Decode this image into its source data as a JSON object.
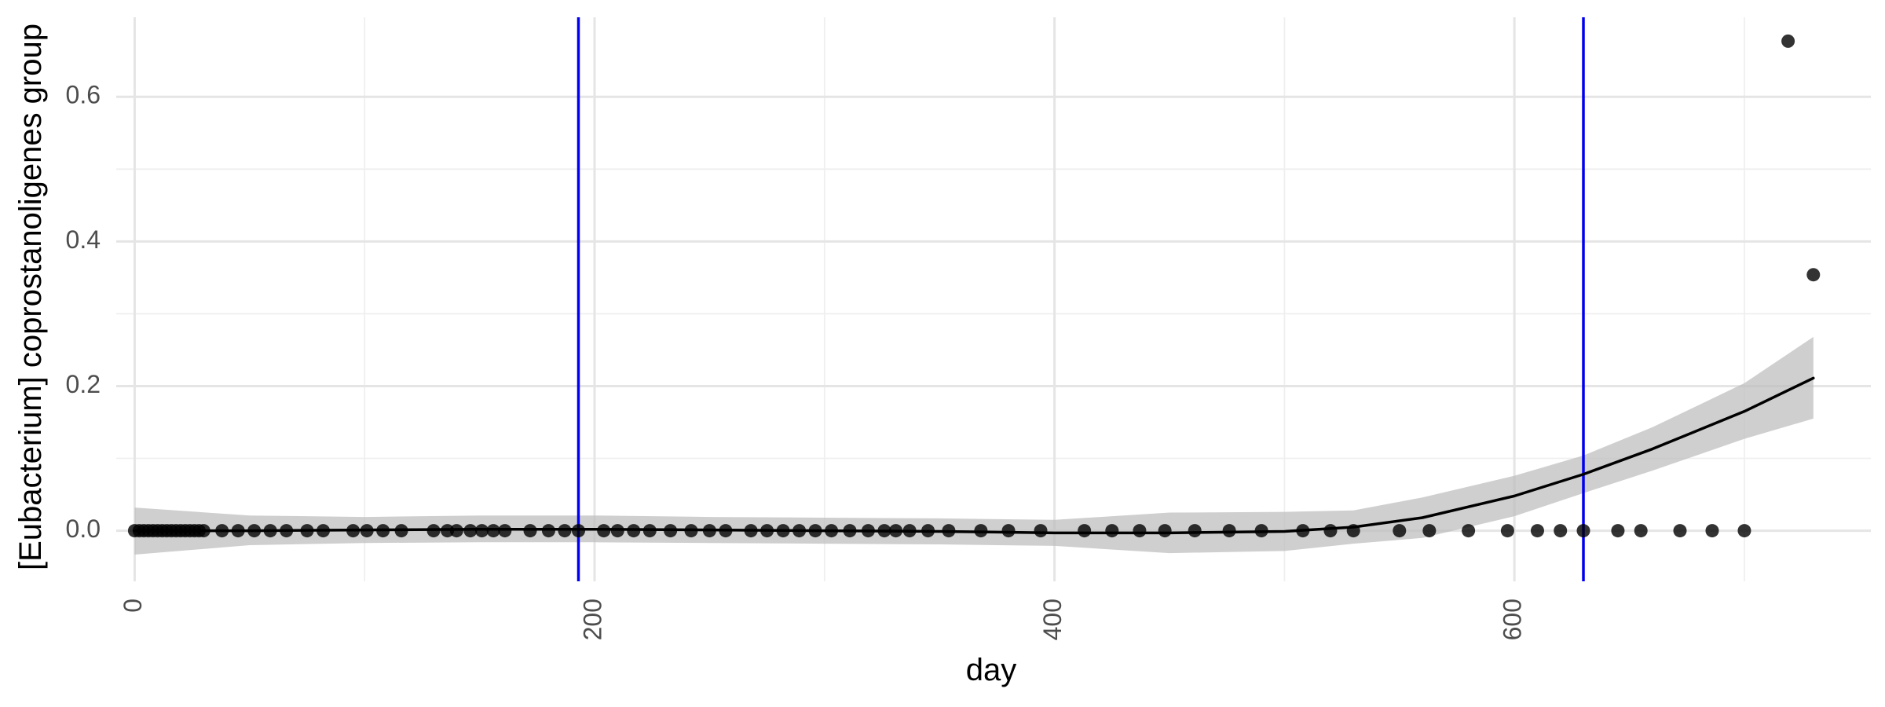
{
  "chart_data": {
    "type": "scatter",
    "title": "",
    "xlabel": "day",
    "ylabel": "[Eubacterium] coprostanoligenes group",
    "xlim": [
      -8,
      755
    ],
    "ylim": [
      -0.07,
      0.71
    ],
    "x_ticks": [
      0,
      200,
      400,
      600
    ],
    "x_tick_labels": [
      "0",
      "200",
      "400",
      "600"
    ],
    "y_ticks": [
      0.0,
      0.2,
      0.4,
      0.6
    ],
    "y_tick_labels": [
      "0.0",
      "0.2",
      "0.4",
      "0.6"
    ],
    "x_minor_ticks": [
      100,
      300,
      500,
      700
    ],
    "y_minor_ticks": [
      0.1,
      0.3,
      0.5
    ],
    "grid": true,
    "vertical_lines": [
      193,
      630
    ],
    "colors": {
      "points": "#000000",
      "smooth_line": "#000000",
      "confidence_band": "#bdbdbd",
      "vertical_lines": "#0000ee",
      "grid": "#e5e5e5"
    },
    "series": [
      {
        "type": "points",
        "x": [
          0,
          2,
          4,
          6,
          8,
          10,
          12,
          14,
          16,
          18,
          20,
          22,
          24,
          26,
          28,
          30,
          38,
          45,
          52,
          59,
          66,
          75,
          82,
          95,
          101,
          108,
          116,
          130,
          136,
          140,
          146,
          151,
          156,
          161,
          172,
          180,
          187,
          193,
          204,
          210,
          217,
          224,
          233,
          242,
          250,
          257,
          268,
          275,
          282,
          289,
          296,
          303,
          311,
          319,
          326,
          331,
          337,
          345,
          354,
          368,
          380,
          394,
          413,
          425,
          437,
          448,
          461,
          476,
          490,
          508,
          520,
          530,
          550,
          563,
          580,
          597,
          610,
          620,
          630,
          645,
          655,
          672,
          686,
          700,
          719,
          730
        ],
        "y": [
          0,
          0,
          0,
          0,
          0,
          0,
          0,
          0,
          0,
          0,
          0,
          0,
          0,
          0,
          0,
          0,
          0,
          0,
          0,
          0,
          0,
          0,
          0,
          0,
          0,
          0,
          0,
          0,
          0,
          0,
          0,
          0,
          0,
          0,
          0,
          0,
          0,
          0,
          0,
          0,
          0,
          0,
          0,
          0,
          0,
          0,
          0,
          0,
          0,
          0,
          0,
          0,
          0,
          0,
          0,
          0,
          0,
          0,
          0,
          0,
          0,
          0,
          0,
          0,
          0,
          0,
          0,
          0,
          0,
          0,
          0,
          0,
          0,
          0,
          0,
          0,
          0,
          0,
          0,
          0,
          0,
          0,
          0,
          0,
          0.677,
          0.354
        ]
      },
      {
        "type": "smooth",
        "x": [
          0,
          50,
          100,
          150,
          200,
          250,
          300,
          350,
          400,
          450,
          500,
          530,
          560,
          600,
          630,
          660,
          700,
          730
        ],
        "y": [
          0.0,
          0.0,
          0.001,
          0.002,
          0.002,
          0.001,
          0.0,
          -0.001,
          -0.003,
          -0.003,
          -0.001,
          0.005,
          0.018,
          0.048,
          0.078,
          0.113,
          0.165,
          0.211
        ],
        "lower": [
          -0.033,
          -0.02,
          -0.017,
          -0.016,
          -0.016,
          -0.017,
          -0.018,
          -0.019,
          -0.021,
          -0.031,
          -0.028,
          -0.018,
          -0.01,
          0.02,
          0.052,
          0.083,
          0.127,
          0.155
        ],
        "upper": [
          0.032,
          0.021,
          0.019,
          0.021,
          0.021,
          0.019,
          0.018,
          0.017,
          0.015,
          0.025,
          0.026,
          0.028,
          0.046,
          0.076,
          0.104,
          0.143,
          0.204,
          0.268
        ]
      }
    ]
  }
}
